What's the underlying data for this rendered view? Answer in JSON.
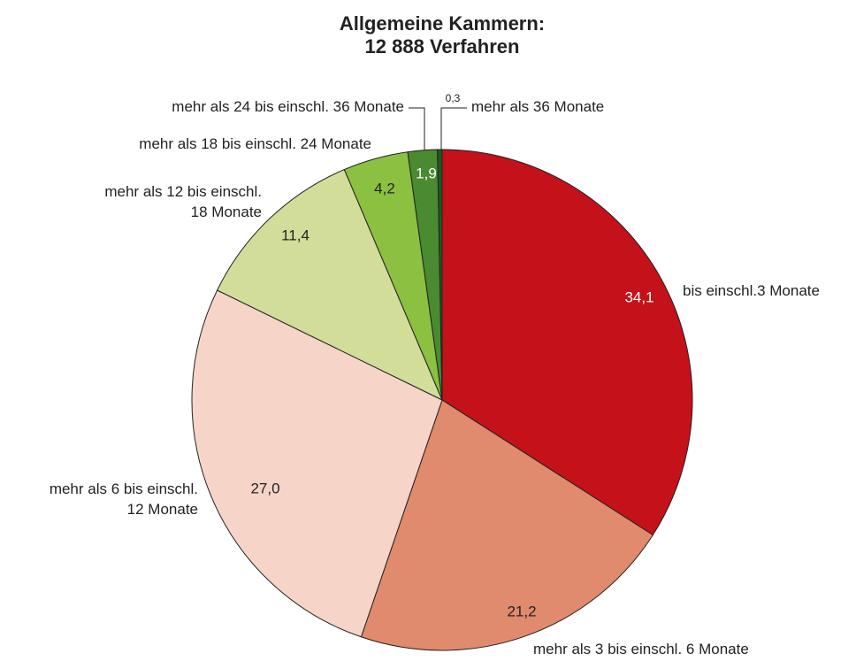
{
  "chart_data": {
    "type": "pie",
    "title": "Allgemeine Kammern:",
    "subtitle": "12 888 Verfahren",
    "categories": [
      "bis einschl.3 Monate",
      "mehr als 3 bis einschl. 6 Monate",
      "mehr als 6 bis einschl.\n12 Monate",
      "mehr als 12 bis einschl.\n18 Monate",
      "mehr als 18 bis einschl. 24 Monate",
      "mehr als 24 bis einschl. 36 Monate",
      "mehr als 36 Monate"
    ],
    "values": [
      34.1,
      21.2,
      27.0,
      11.4,
      4.2,
      1.9,
      0.3
    ],
    "value_labels": [
      "34,1",
      "21,2",
      "27,0",
      "11,4",
      "4,2",
      "1,9",
      "0,3"
    ],
    "colors": [
      "#c4111a",
      "#e08a6e",
      "#f6d5c8",
      "#d2dd9a",
      "#8bc040",
      "#4a8a30",
      "#1e5a20"
    ]
  }
}
